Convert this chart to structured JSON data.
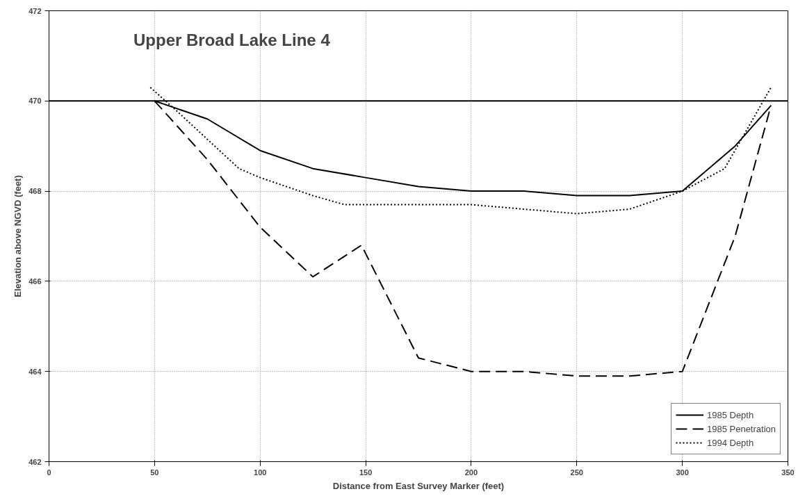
{
  "chart_data": {
    "type": "line",
    "title": "Upper Broad Lake Line 4",
    "xlabel": "Distance from East Survey Marker (feet)",
    "ylabel": "Elevation above NGVD (feet)",
    "xlim": [
      0,
      350
    ],
    "xticks": [
      0,
      50,
      100,
      150,
      200,
      250,
      300,
      350
    ],
    "ylim": [
      462,
      472
    ],
    "yticks": [
      462,
      464,
      466,
      468,
      470,
      472
    ],
    "grid": true,
    "legend": "bottom right",
    "ref_lines": [
      {
        "axis": "y",
        "value": 470,
        "label": null,
        "color": "#000000",
        "line_style": "solid"
      }
    ],
    "series": [
      {
        "name": "1985 Depth",
        "color": "#000000",
        "line_style": "solid",
        "x": [
          50,
          75,
          100,
          125,
          150,
          175,
          200,
          225,
          250,
          275,
          300,
          325,
          342
        ],
        "values": [
          470,
          469.6,
          468.9,
          468.5,
          468.3,
          468.1,
          468,
          468,
          467.9,
          467.9,
          468,
          469,
          469.9
        ]
      },
      {
        "name": "1985 Penetration",
        "color": "#000000",
        "line_style": "dashed",
        "x": [
          50,
          75,
          100,
          125,
          148,
          175,
          200,
          225,
          250,
          275,
          300,
          325,
          342
        ],
        "values": [
          470,
          468.7,
          467.2,
          466.1,
          466.8,
          464.3,
          464,
          464,
          463.9,
          463.9,
          464,
          467,
          469.9
        ]
      },
      {
        "name": "1994 Depth",
        "color": "#000000",
        "line_style": "dotted",
        "x": [
          48,
          60,
          90,
          100,
          125,
          140,
          175,
          200,
          250,
          275,
          300,
          320,
          342
        ],
        "values": [
          470.3,
          469.8,
          468.5,
          468.3,
          467.9,
          467.7,
          467.7,
          467.7,
          467.5,
          467.6,
          468,
          468.5,
          470.3
        ]
      }
    ]
  }
}
